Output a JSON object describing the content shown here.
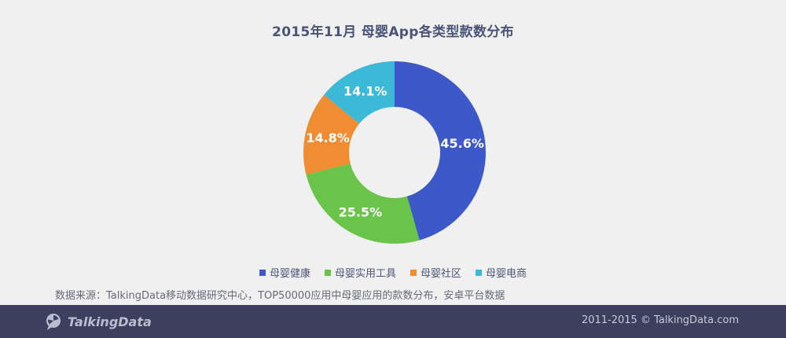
{
  "title": "2015年11月  母婴App各类型款数分布",
  "chart_data": {
    "type": "pie",
    "donut": true,
    "title": "2015年11月  母婴App各类型款数分布",
    "legend_position": "bottom",
    "series": [
      {
        "name": "母婴健康",
        "value": 45.6,
        "label": "45.6%",
        "color": "#3d59c9"
      },
      {
        "name": "母婴实用工具",
        "value": 25.5,
        "label": "25.5%",
        "color": "#6ac44a"
      },
      {
        "name": "母婴社区",
        "value": 14.8,
        "label": "14.8%",
        "color": "#f08c32"
      },
      {
        "name": "母婴电商",
        "value": 14.1,
        "label": "14.1%",
        "color": "#3cb9d6"
      }
    ]
  },
  "legend": [
    {
      "label": "母婴健康",
      "color": "#3d59c9"
    },
    {
      "label": "母婴实用工具",
      "color": "#6ac44a"
    },
    {
      "label": "母婴社区",
      "color": "#f08c32"
    },
    {
      "label": "母婴电商",
      "color": "#3cb9d6"
    }
  ],
  "source": "数据来源：TalkingData移动数据研究中心，TOP50000应用中母婴应用的款数分布，安卓平台数据",
  "footer": {
    "brand": "TalkingData",
    "copyright": "2011-2015 © TalkingData.com"
  }
}
